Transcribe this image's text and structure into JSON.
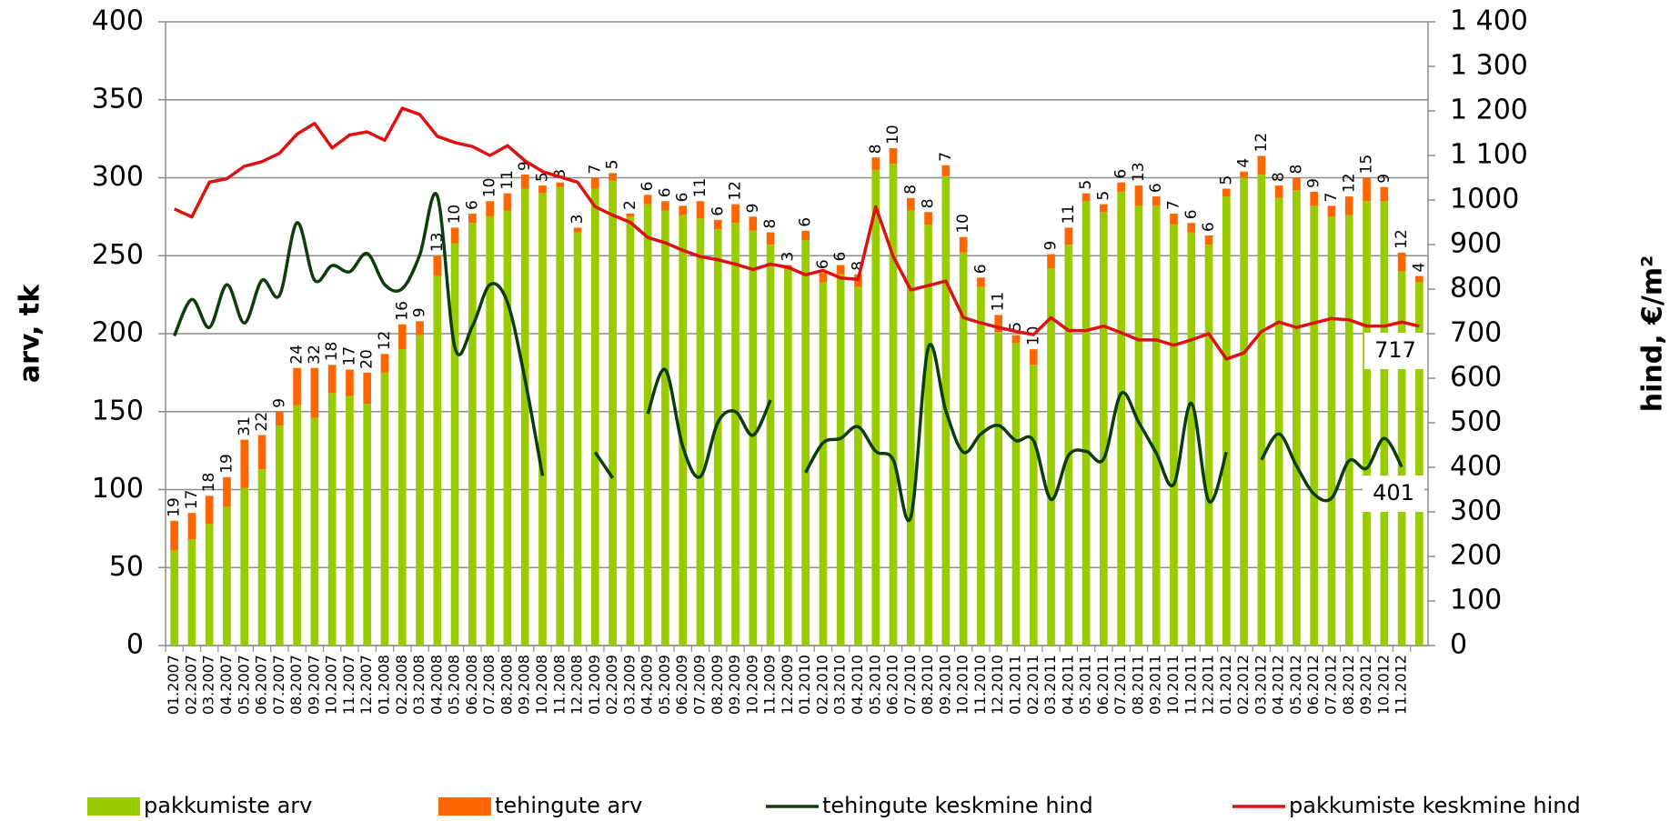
{
  "chart_data": {
    "type": "bar",
    "stacked": true,
    "y_label": "arv, tk",
    "y2_label": "hind, €/m²",
    "categories": [
      "01.2007",
      "02.2007",
      "03.2007",
      "04.2007",
      "05.2007",
      "06.2007",
      "07.2007",
      "08.2007",
      "09.2007",
      "10.2007",
      "11.2007",
      "12.2007",
      "01.2008",
      "02.2008",
      "03.2008",
      "04.2008",
      "05.2008",
      "06.2008",
      "07.2008",
      "08.2008",
      "09.2008",
      "10.2008",
      "11.2008",
      "12.2008",
      "01.2009",
      "02.2009",
      "03.2009",
      "04.2009",
      "05.2009",
      "06.2009",
      "07.2009",
      "08.2009",
      "09.2009",
      "10.2009",
      "11.2009",
      "12.2009",
      "01.2010",
      "02.2010",
      "03.2010",
      "04.2010",
      "05.2010",
      "06.2010",
      "07.2010",
      "08.2010",
      "09.2010",
      "10.2010",
      "11.2010",
      "12.2010",
      "01.2011",
      "02.2011",
      "03.2011",
      "04.2011",
      "05.2011",
      "06.2011",
      "07.2011",
      "08.2011",
      "09.2011",
      "10.2011",
      "11.2011",
      "12.2011",
      "01.2012",
      "02.2012",
      "03.2012",
      "04.2012",
      "05.2012",
      "06.2012",
      "07.2012",
      "08.2012",
      "09.2012",
      "10.2012",
      "11.2012",
      null
    ],
    "series": [
      {
        "name": "pakkumiste arv",
        "color": "#99cc00",
        "values": [
          61,
          68,
          78,
          89,
          101,
          113,
          141,
          154,
          146,
          162,
          160,
          155,
          175,
          190,
          199,
          237,
          258,
          271,
          275,
          279,
          293,
          290,
          294,
          265,
          293,
          298,
          275,
          283,
          279,
          276,
          274,
          267,
          271,
          266,
          257,
          241,
          260,
          233,
          238,
          230,
          305,
          309,
          279,
          270,
          301,
          252,
          230,
          201,
          194,
          180,
          242,
          257,
          285,
          278,
          291,
          282,
          282,
          270,
          265,
          257,
          288,
          300,
          302,
          287,
          292,
          282,
          275,
          276,
          285,
          285,
          240,
          233
        ]
      },
      {
        "name": "tehingute arv",
        "color": "#ff6600",
        "values": [
          19,
          17,
          18,
          19,
          31,
          22,
          9,
          24,
          32,
          18,
          17,
          20,
          12,
          16,
          9,
          13,
          10,
          6,
          10,
          11,
          9,
          5,
          3,
          3,
          7,
          5,
          2,
          6,
          6,
          6,
          11,
          6,
          12,
          9,
          8,
          3,
          6,
          6,
          6,
          8,
          8,
          10,
          8,
          8,
          7,
          10,
          6,
          11,
          5,
          10,
          9,
          11,
          5,
          5,
          6,
          13,
          6,
          7,
          6,
          6,
          5,
          4,
          12,
          8,
          8,
          9,
          7,
          12,
          15,
          9,
          12,
          4
        ]
      },
      {
        "name": "tehingute keskmine hind",
        "color": "#0d3d0d",
        "axis": "y2",
        "values": [
          695,
          777,
          714,
          810,
          724,
          820,
          786,
          949,
          820,
          853,
          839,
          880,
          810,
          801,
          877,
          1009,
          669,
          717,
          810,
          770,
          597,
          381,
          null,
          null,
          434,
          376,
          null,
          520,
          619,
          446,
          379,
          501,
          525,
          472,
          551,
          null,
          388,
          455,
          465,
          491,
          436,
          417,
          288,
          669,
          527,
          434,
          475,
          494,
          460,
          460,
          328,
          427,
          436,
          419,
          566,
          501,
          432,
          362,
          544,
          324,
          434,
          null,
          417,
          475,
          403,
          340,
          331,
          415,
          398,
          465,
          401,
          null
        ]
      },
      {
        "name": "pakkumiste keskmine hind",
        "color": "#dd1111",
        "axis": "y2",
        "values": [
          980,
          962,
          1040,
          1048,
          1076,
          1086,
          1105,
          1148,
          1172,
          1117,
          1146,
          1153,
          1134,
          1206,
          1192,
          1143,
          1129,
          1120,
          1100,
          1122,
          1088,
          1064,
          1052,
          1040,
          985,
          966,
          950,
          916,
          904,
          887,
          873,
          866,
          856,
          844,
          856,
          849,
          832,
          842,
          825,
          822,
          985,
          873,
          798,
          808,
          818,
          736,
          724,
          714,
          705,
          698,
          736,
          707,
          707,
          717,
          702,
          686,
          686,
          674,
          686,
          700,
          643,
          657,
          705,
          726,
          714,
          724,
          734,
          731,
          717,
          717,
          726,
          717
        ]
      }
    ],
    "annotations": [
      "717",
      "401"
    ],
    "ylim": [
      0,
      400
    ],
    "yticks": [
      0,
      50,
      100,
      150,
      200,
      250,
      300,
      350,
      400
    ],
    "y2lim": [
      0,
      1400
    ],
    "y2ticks": [
      0,
      100,
      200,
      300,
      400,
      500,
      600,
      700,
      800,
      900,
      1000,
      {
        "value": 1100,
        "label": "1 100"
      },
      {
        "value": 1200,
        "label": "1 200"
      },
      {
        "value": 1300,
        "label": "1 300"
      },
      {
        "value": 1400,
        "label": "1 400"
      }
    ],
    "grid": true
  }
}
